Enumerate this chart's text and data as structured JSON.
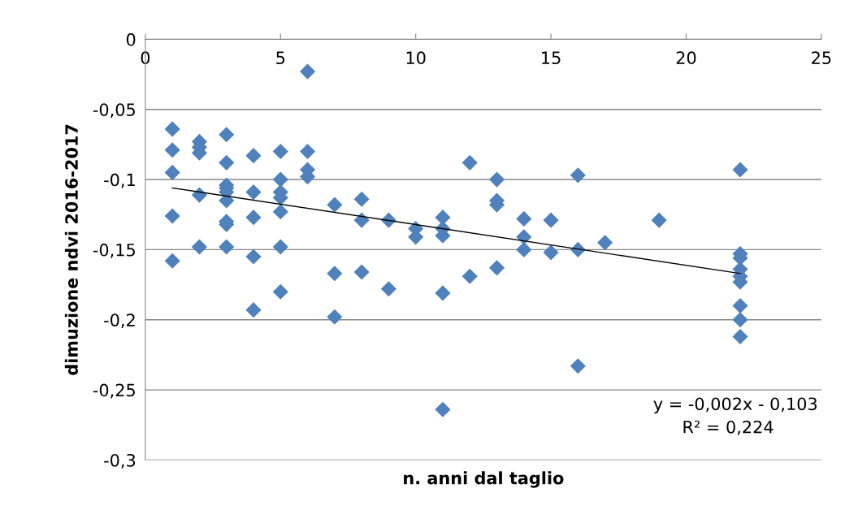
{
  "chart_data": {
    "type": "scatter",
    "xlabel": "n. anni dal taglio",
    "ylabel": "dimuzione ndvi 2016-2017",
    "xlim": [
      0,
      25
    ],
    "xticks": [
      0,
      5,
      10,
      15,
      20,
      25
    ],
    "ylim": [
      -0.3,
      0
    ],
    "yticks": [
      {
        "value": -0.3,
        "label": "-0,3"
      },
      {
        "value": -0.25,
        "label": "-0,25"
      },
      {
        "value": -0.2,
        "label": "-0,2"
      },
      {
        "value": -0.15,
        "label": "-0,15"
      },
      {
        "value": -0.1,
        "label": "-0,1"
      },
      {
        "value": -0.05,
        "label": "-0,05"
      },
      {
        "value": 0,
        "label": "0"
      }
    ],
    "grid": "y",
    "marker": "diamond",
    "legend": false,
    "annotations": [
      "y = -0,002x - 0,103",
      "R² = 0,224"
    ],
    "series": [
      {
        "color": "#4f81bd",
        "x": [
          1,
          1,
          1,
          1,
          1,
          2,
          2,
          2,
          2,
          2,
          3,
          3,
          3,
          3,
          3,
          3,
          3,
          3,
          3,
          4,
          4,
          4,
          4,
          4,
          5,
          5,
          5,
          5,
          5,
          5,
          5,
          6,
          6,
          6,
          6,
          7,
          7,
          7,
          8,
          8,
          8,
          9,
          9,
          10,
          10,
          11,
          11,
          11,
          11,
          11,
          12,
          12,
          13,
          13,
          13,
          13,
          14,
          14,
          14,
          15,
          15,
          16,
          16,
          16,
          17,
          19,
          22,
          22,
          22,
          22,
          22,
          22,
          22,
          22,
          22
        ],
        "values": [
          -0.064,
          -0.079,
          -0.095,
          -0.126,
          -0.158,
          -0.073,
          -0.077,
          -0.081,
          -0.111,
          -0.148,
          -0.068,
          -0.088,
          -0.104,
          -0.106,
          -0.109,
          -0.115,
          -0.13,
          -0.132,
          -0.148,
          -0.083,
          -0.109,
          -0.127,
          -0.155,
          -0.193,
          -0.08,
          -0.1,
          -0.109,
          -0.113,
          -0.123,
          -0.148,
          -0.18,
          -0.023,
          -0.08,
          -0.093,
          -0.098,
          -0.118,
          -0.167,
          -0.198,
          -0.114,
          -0.129,
          -0.166,
          -0.129,
          -0.178,
          -0.135,
          -0.141,
          -0.127,
          -0.135,
          -0.14,
          -0.181,
          -0.264,
          -0.088,
          -0.169,
          -0.1,
          -0.115,
          -0.118,
          -0.163,
          -0.128,
          -0.141,
          -0.15,
          -0.129,
          -0.152,
          -0.097,
          -0.15,
          -0.233,
          -0.145,
          -0.129,
          -0.093,
          -0.153,
          -0.156,
          -0.164,
          -0.169,
          -0.173,
          -0.19,
          -0.2,
          -0.212
        ]
      },
      {
        "type": "line",
        "color": "#000000",
        "x": [
          1,
          22
        ],
        "values": [
          -0.106,
          -0.167
        ],
        "marker": "none",
        "line_style": "solid"
      }
    ]
  }
}
